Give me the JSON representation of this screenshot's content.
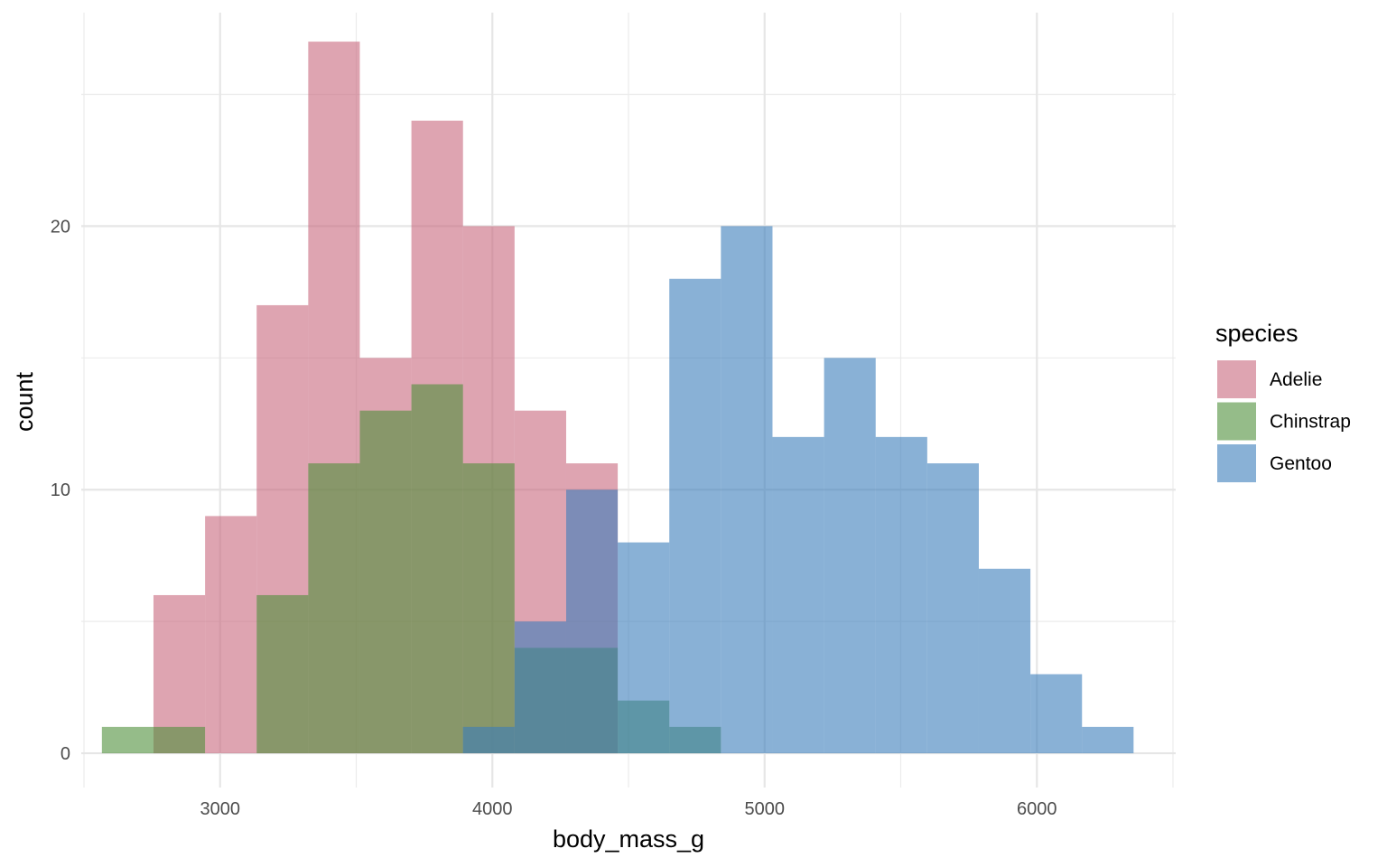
{
  "chart_data": {
    "type": "histogram",
    "xlabel": "body_mass_g",
    "ylabel": "count",
    "xlim": [
      2490,
      6510
    ],
    "ylim": [
      -1.3,
      28.1
    ],
    "x_ticks": [
      3000,
      4000,
      5000,
      6000
    ],
    "x_minor_ticks": [
      2500,
      3500,
      4500,
      5500,
      6500
    ],
    "y_ticks": [
      0,
      10,
      20
    ],
    "y_minor_ticks": [
      5,
      15,
      25
    ],
    "grid": true,
    "bins": {
      "start": 2565.8,
      "width": 189.5,
      "centers": [
        2660.5,
        2850.0,
        3039.5,
        3229.0,
        3418.4,
        3607.9,
        3797.4,
        3986.8,
        4176.3,
        4365.8,
        4555.3,
        4744.7,
        4934.2,
        5123.7,
        5313.2,
        5502.6,
        5692.1,
        5881.6,
        6071.1,
        6260.5
      ]
    },
    "legend": {
      "title": "species",
      "position": "right"
    },
    "series": [
      {
        "name": "Adelie",
        "color": "#c8687d",
        "opacity": 0.6,
        "values": [
          0,
          6,
          9,
          17,
          27,
          15,
          24,
          20,
          13,
          11,
          0,
          0,
          0,
          0,
          0,
          0,
          0,
          0,
          0,
          0
        ]
      },
      {
        "name": "Chinstrap",
        "color": "#4f8f3b",
        "opacity": 0.6,
        "values": [
          1,
          1,
          0,
          6,
          11,
          13,
          14,
          11,
          4,
          4,
          2,
          1,
          0,
          0,
          0,
          0,
          0,
          0,
          0,
          0
        ]
      },
      {
        "name": "Gentoo",
        "color": "#3b7dbb",
        "opacity": 0.6,
        "values": [
          0,
          0,
          0,
          0,
          0,
          0,
          0,
          1,
          5,
          10,
          8,
          18,
          20,
          12,
          15,
          12,
          11,
          7,
          3,
          1
        ]
      }
    ]
  }
}
